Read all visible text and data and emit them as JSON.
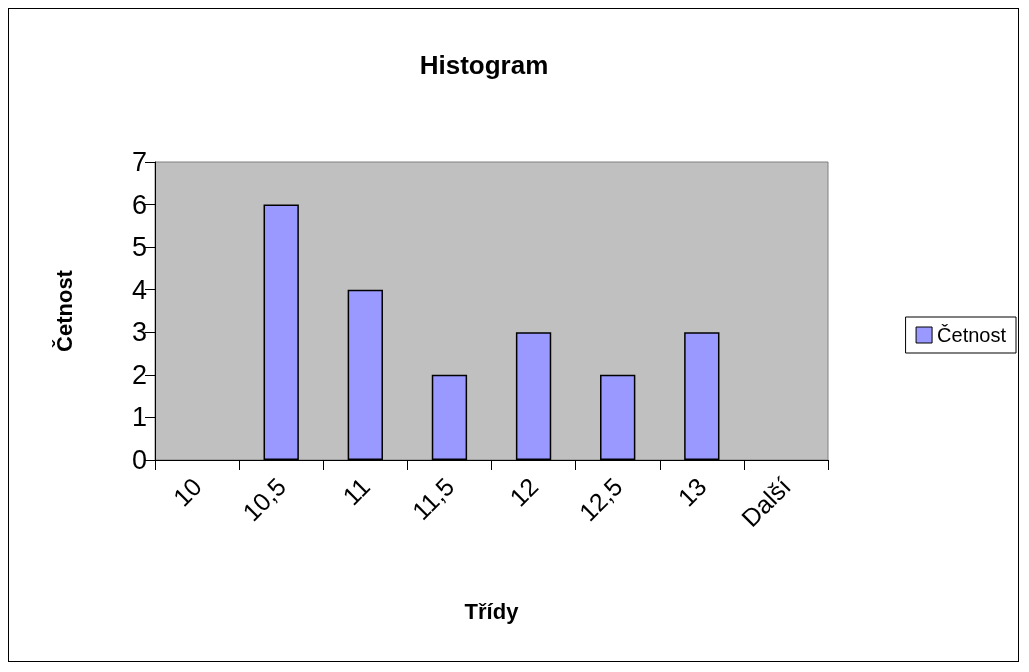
{
  "chart_data": {
    "type": "bar",
    "title": "Histogram",
    "xlabel": "Třídy",
    "ylabel": "Četnost",
    "categories": [
      "10",
      "10,5",
      "11",
      "11,5",
      "12",
      "12,5",
      "13",
      "Další"
    ],
    "series": [
      {
        "name": "Četnost",
        "color": "#9999ff",
        "values": [
          0,
          6,
          4,
          2,
          3,
          2,
          3,
          0
        ]
      }
    ],
    "ylim": [
      0,
      7
    ],
    "yticks": [
      0,
      1,
      2,
      3,
      4,
      5,
      6,
      7
    ],
    "grid": false,
    "legend": "right"
  }
}
